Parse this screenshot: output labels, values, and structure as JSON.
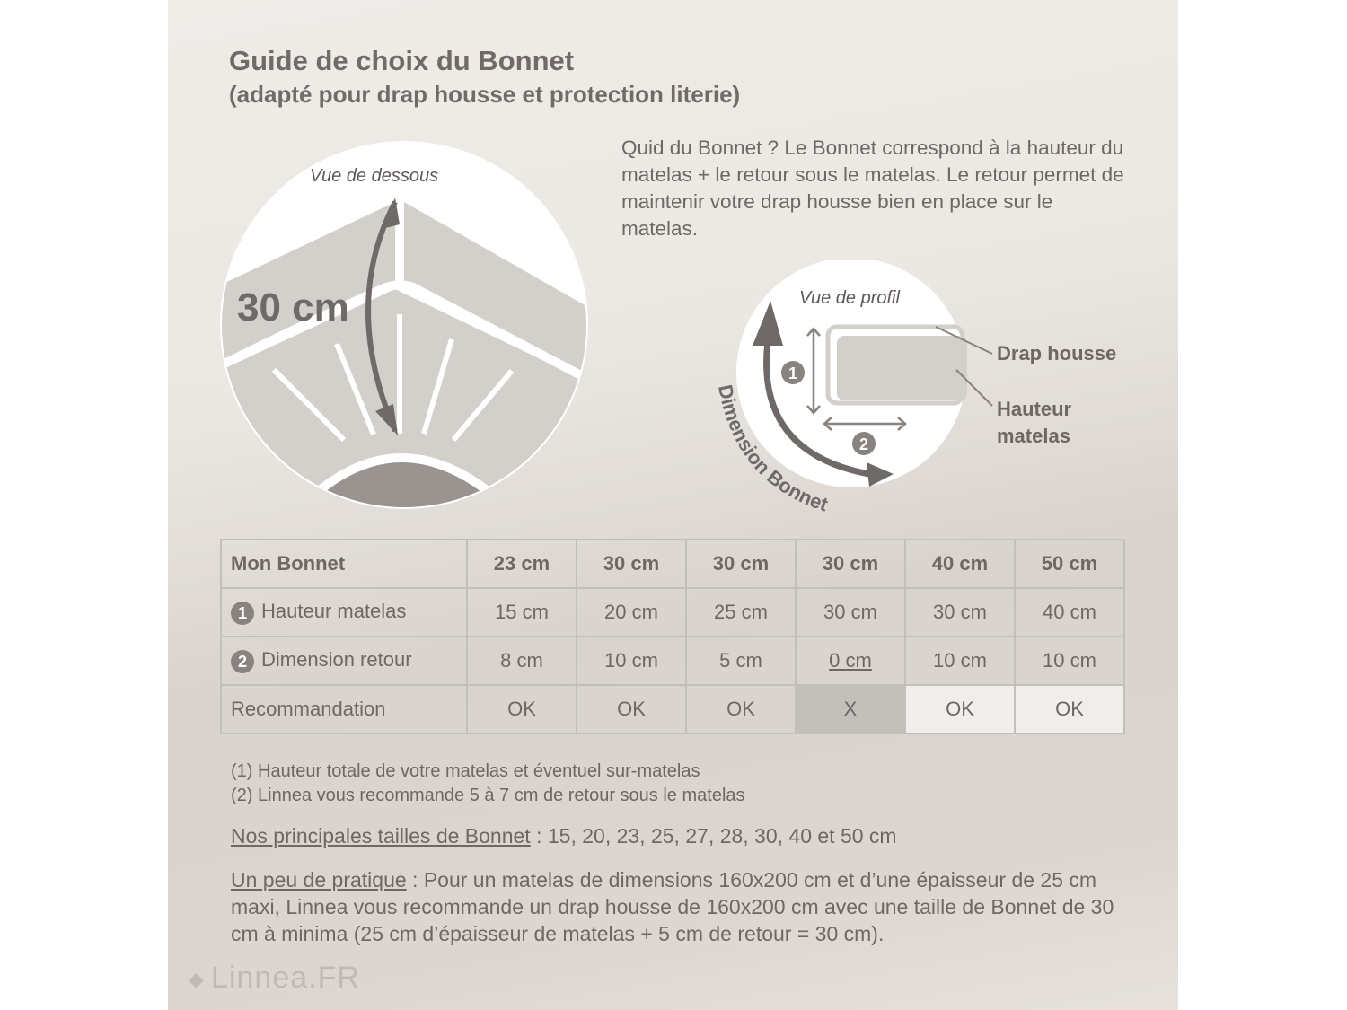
{
  "title": "Guide de choix du Bonnet",
  "subtitle": "(adapté pour drap housse et protection literie)",
  "intro": "Quid du Bonnet ? Le Bonnet correspond à la hauteur du matelas + le retour sous le matelas. Le retour permet de maintenir votre drap housse bien en place sur le matelas.",
  "diagram_bottom": {
    "caption": "Vue de dessous",
    "measure": "30 cm"
  },
  "diagram_profile": {
    "caption": "Vue de profil",
    "arc_label": "Dimension Bonnet",
    "marker1": "1",
    "marker2": "2",
    "callout_drap": "Drap housse",
    "callout_hauteur": "Hauteur matelas"
  },
  "table": {
    "row_labels": [
      "Mon Bonnet",
      "Hauteur matelas",
      "Dimension retour",
      "Recommandation"
    ],
    "row_markers": [
      "",
      "1",
      "2",
      ""
    ],
    "bonnet": [
      "23 cm",
      "30 cm",
      "30 cm",
      "30 cm",
      "40 cm",
      "50 cm"
    ],
    "hauteur": [
      "15 cm",
      "20 cm",
      "25 cm",
      "30 cm",
      "30 cm",
      "40 cm"
    ],
    "retour": [
      "8 cm",
      "10 cm",
      "5 cm",
      "0 cm",
      "10 cm",
      "10 cm"
    ],
    "reco": [
      "OK",
      "OK",
      "OK",
      "X",
      "OK",
      "OK"
    ]
  },
  "notes": [
    "(1) Hauteur totale de votre matelas et éventuel sur-matelas",
    "(2) Linnea vous recommande 5 à 7 cm de retour sous le matelas"
  ],
  "sizes": {
    "label": "Nos principales tailles de Bonnet",
    "text": " : 15, 20, 23, 25, 27, 28, 30, 40 et 50 cm"
  },
  "practice": {
    "label": "Un peu de pratique",
    "text": " : Pour un matelas de dimensions 160x200 cm et d’une épaisseur de 25 cm maxi, Linnea vous recommande un drap housse de 160x200 cm avec une taille de Bonnet de 30 cm à minima (25 cm d’épaisseur de matelas + 5 cm de retour = 30 cm)."
  },
  "logo": "Linnea.FR",
  "colors": {
    "text": "#6e6764",
    "arrow": "#6f6967",
    "sheet": "#d3cfcb",
    "bad_cell": "#c3bfbb"
  }
}
